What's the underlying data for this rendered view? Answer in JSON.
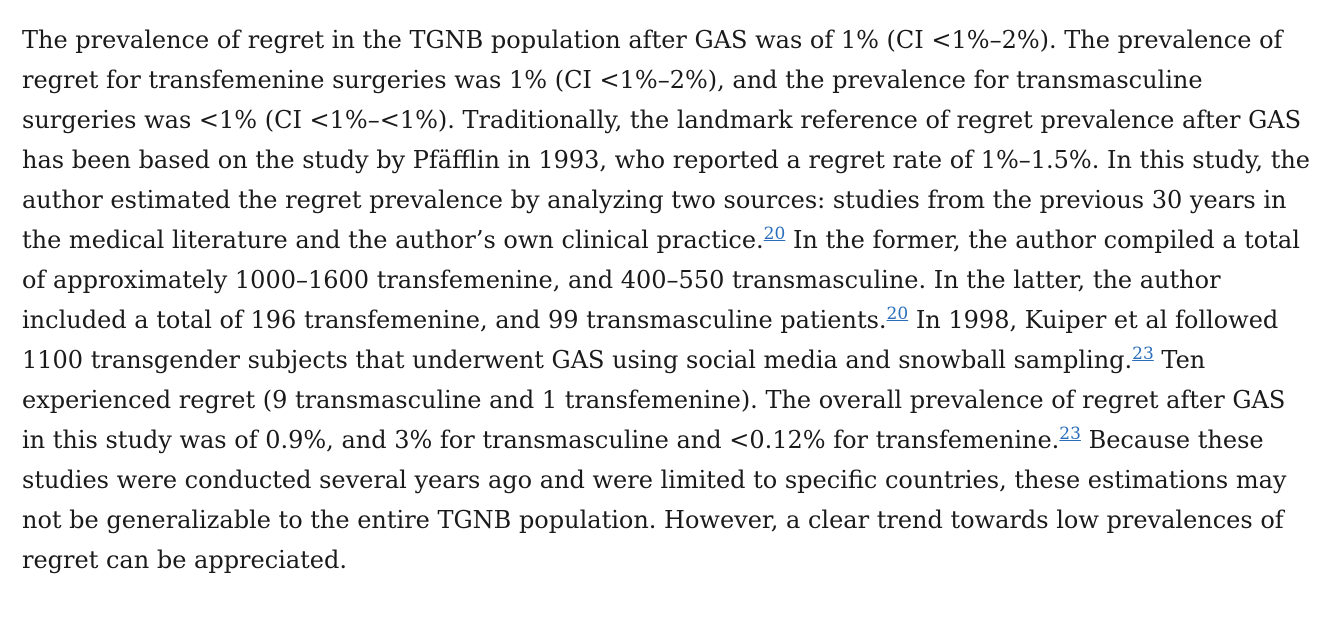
{
  "paragraph": {
    "runs": [
      {
        "text": "The prevalence of regret in the TGNB population after GAS was of 1% (CI <1%–2%). The prevalence of regret for transfemenine surgeries was 1% (CI <1%–2%), and the prevalence for transmasculine surgeries was <1% (CI <1%–<1%). Traditionally, the landmark reference of regret prevalence after GAS has been based on the study by Pfäfflin in 1993, who reported a regret rate of 1%–1.5%. In this study, the author estimated the regret prevalence by analyzing two sources: studies from the previous 30 years in the medical literature and the author’s own clinical practice."
      },
      {
        "ref": "20"
      },
      {
        "text": " In the former, the author compiled a total of approximately 1000–1600 transfemenine, and 400–550 transmasculine. In the latter, the author included a total of 196 transfemenine, and 99 transmasculine patients."
      },
      {
        "ref": "20"
      },
      {
        "text": " In 1998, Kuiper et al followed 1100 transgender subjects that underwent GAS using social media and snowball sampling."
      },
      {
        "ref": "23"
      },
      {
        "text": " Ten experienced regret (9 transmasculine and 1 transfemenine). The overall prevalence of regret after GAS in this study was of 0.9%, and 3% for transmasculine and <0.12% for transfemenine."
      },
      {
        "ref": "23"
      },
      {
        "text": " Because these studies were conducted several years ago and were limited to specific countries, these estimations may not be generalizable to the entire TGNB population. However, a clear trend towards low prevalences of regret can be appreciated."
      }
    ]
  }
}
